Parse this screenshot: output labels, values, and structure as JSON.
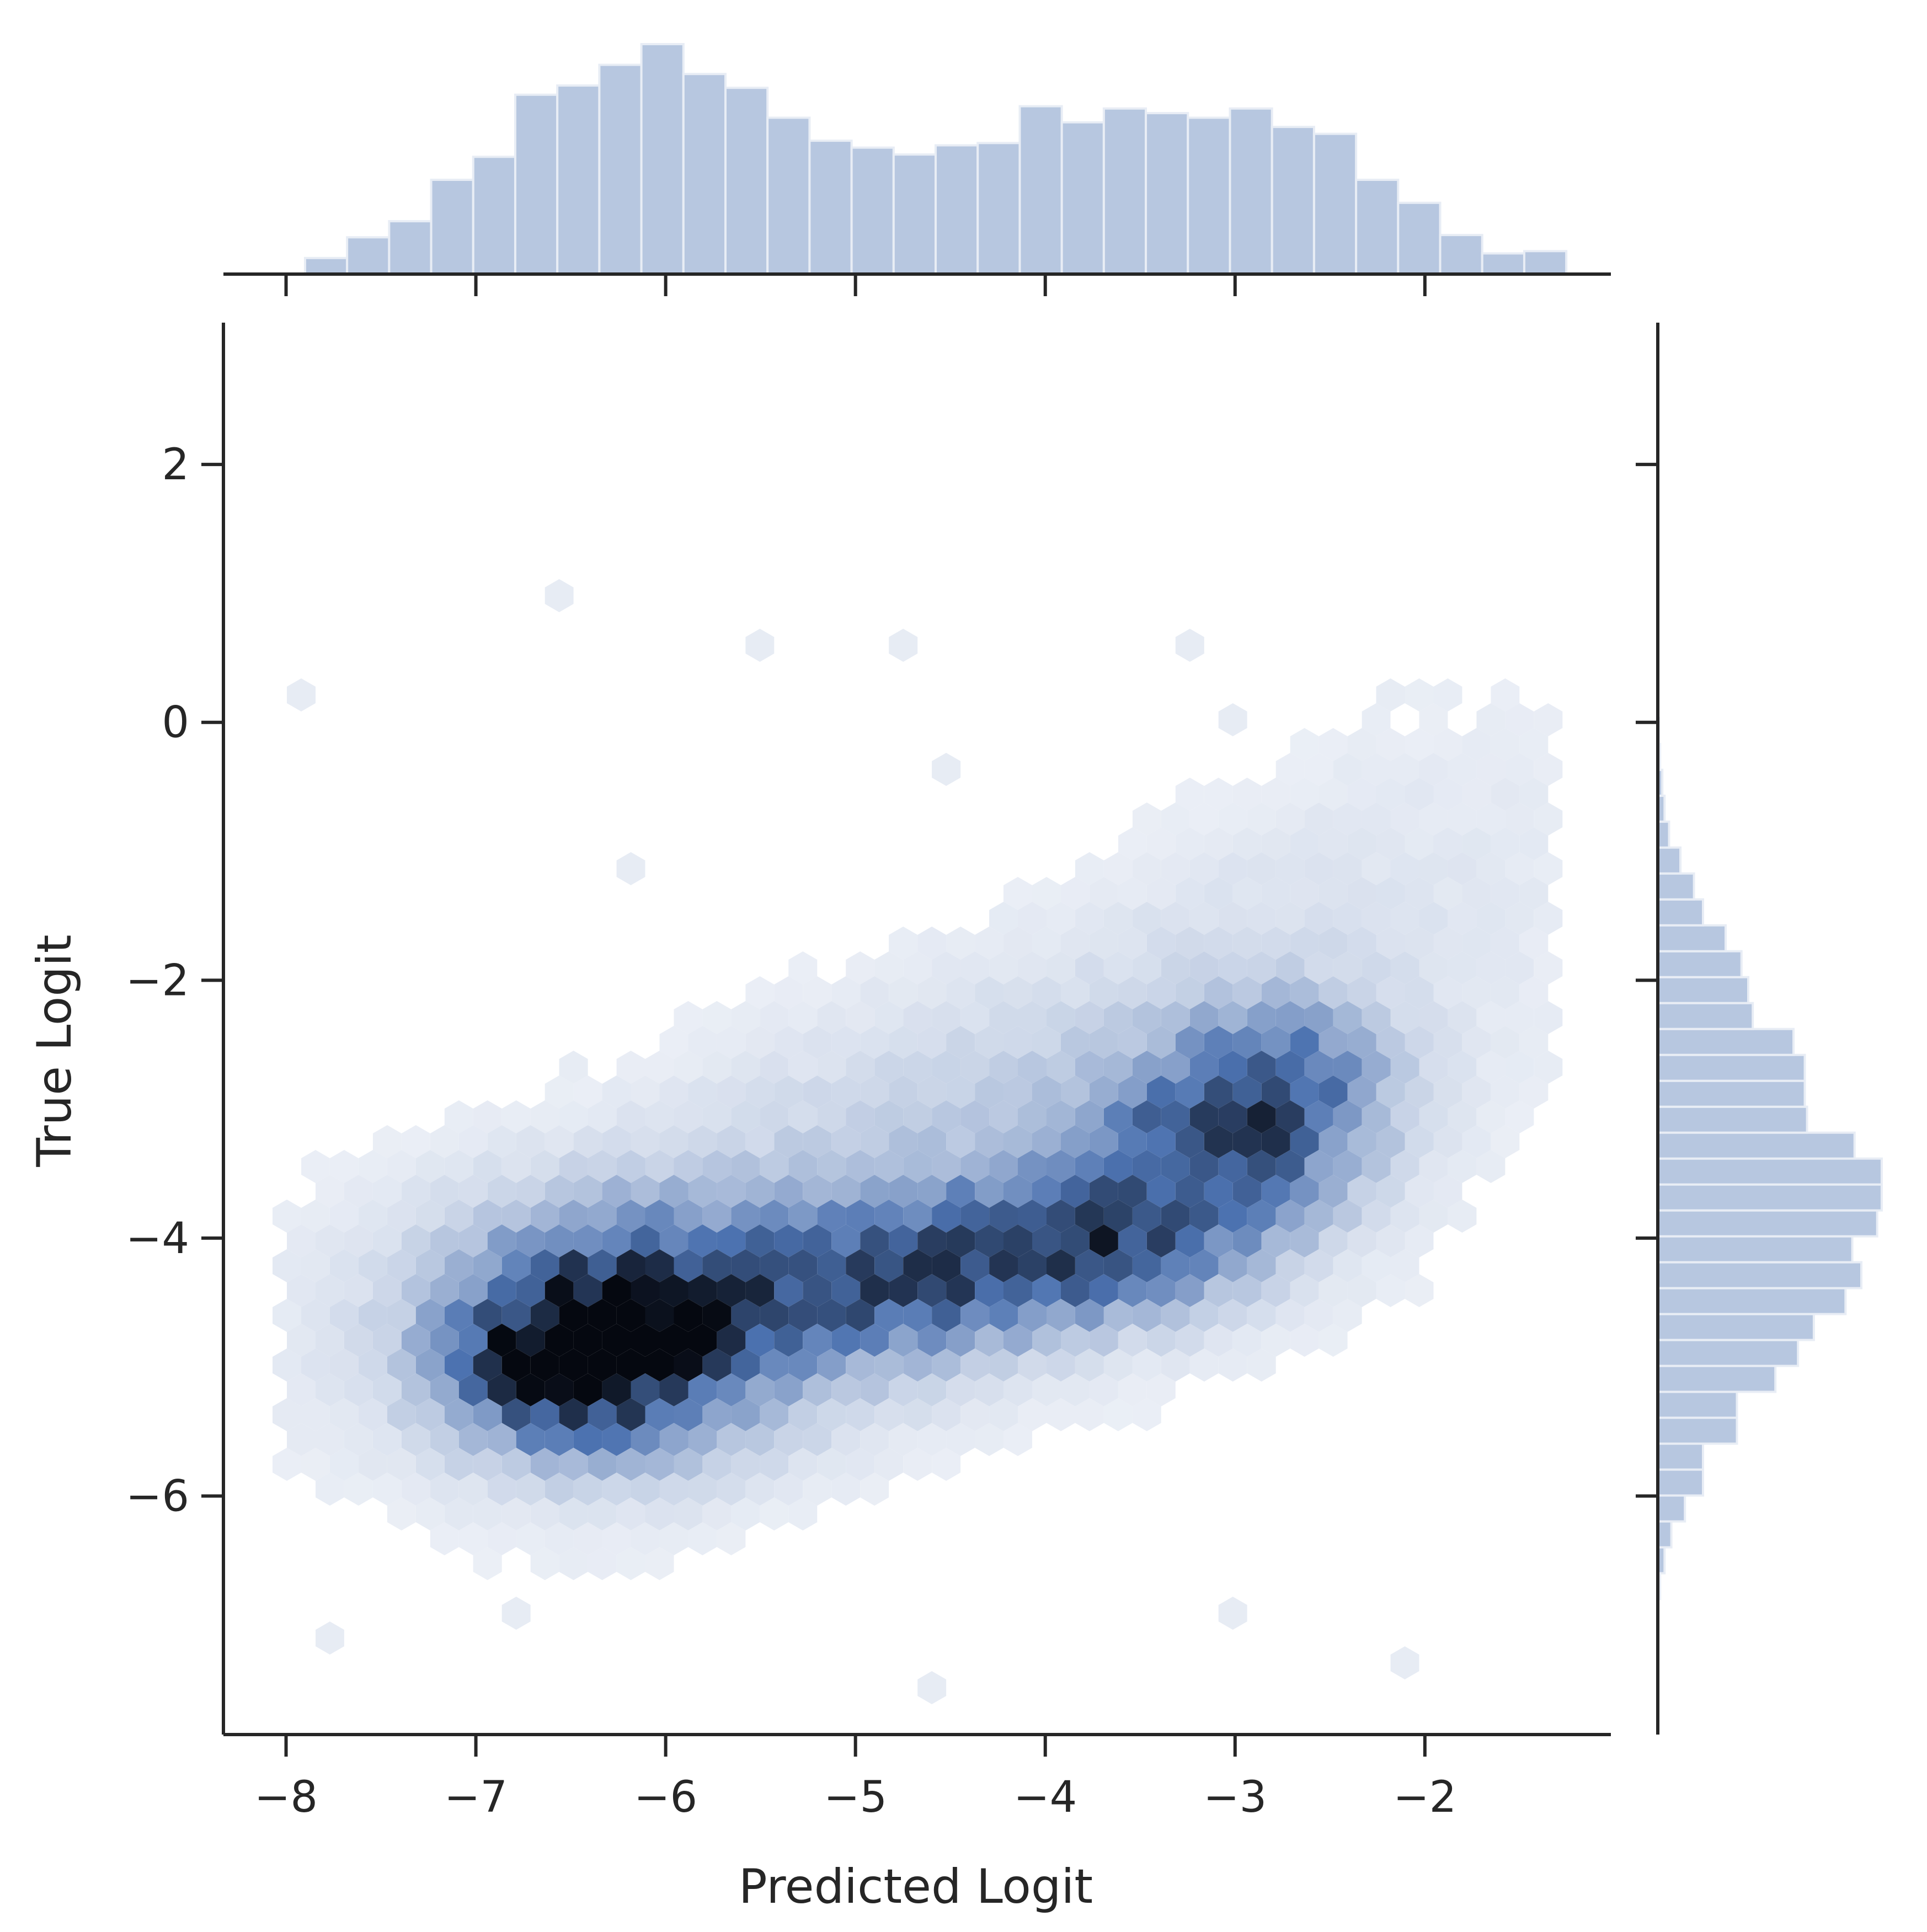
{
  "chart_data": {
    "type": "hexbin",
    "title": "",
    "xlabel": "Predicted Logit",
    "ylabel": "True Logit",
    "xlim": [
      -8.33,
      -1.02
    ],
    "ylim": [
      -7.85,
      3.1
    ],
    "xticks": [
      -8,
      -7,
      -6,
      -5,
      -4,
      -3,
      -2
    ],
    "yticks": [
      -6,
      -4,
      -2,
      0,
      2
    ],
    "xtick_labels": [
      "−8",
      "−7",
      "−6",
      "−5",
      "−4",
      "−3",
      "−2"
    ],
    "ytick_labels": [
      "−6",
      "−4",
      "−2",
      "0",
      "2"
    ],
    "grid": false,
    "legend": "none",
    "colors": {
      "hex_low": "#f4f6fa",
      "hex_mid": "#4c72b0",
      "hex_high": "#050810",
      "histogram": "#b7c7e0",
      "histogram_edge": "#e8edf5",
      "axis": "#262626"
    },
    "density_clusters": [
      {
        "x": -6.25,
        "y": -4.7,
        "sx": 0.55,
        "sy": 0.55,
        "weight": 1.0
      },
      {
        "x": -6.6,
        "y": -5.05,
        "sx": 0.35,
        "sy": 0.35,
        "weight": 0.55
      },
      {
        "x": -4.85,
        "y": -4.35,
        "sx": 0.6,
        "sy": 0.4,
        "weight": 0.55
      },
      {
        "x": -3.8,
        "y": -4.05,
        "sx": 0.55,
        "sy": 0.35,
        "weight": 0.65
      },
      {
        "x": -3.1,
        "y": -3.3,
        "sx": 0.45,
        "sy": 0.45,
        "weight": 0.6
      },
      {
        "x": -2.75,
        "y": -2.75,
        "sx": 0.35,
        "sy": 0.4,
        "weight": 0.45
      }
    ],
    "marginal_x": {
      "bin_edges_start": -7.9,
      "bin_width": 0.2215,
      "counts": [
        0.07,
        0.16,
        0.23,
        0.41,
        0.51,
        0.78,
        0.82,
        0.91,
        1.0,
        0.87,
        0.81,
        0.68,
        0.58,
        0.55,
        0.52,
        0.56,
        0.57,
        0.73,
        0.66,
        0.72,
        0.7,
        0.68,
        0.72,
        0.64,
        0.61,
        0.41,
        0.31,
        0.17,
        0.09,
        0.1
      ]
    },
    "marginal_y": {
      "bin_edges_start": -6.8,
      "bin_width": 0.201,
      "counts": [
        0.01,
        0.03,
        0.06,
        0.12,
        0.2,
        0.2,
        0.35,
        0.35,
        0.52,
        0.62,
        0.69,
        0.83,
        0.9,
        0.86,
        0.97,
        0.99,
        0.99,
        0.87,
        0.66,
        0.65,
        0.65,
        0.6,
        0.42,
        0.4,
        0.37,
        0.3,
        0.2,
        0.16,
        0.1,
        0.05,
        0.03,
        0.02,
        0.01,
        0.005
      ]
    }
  }
}
